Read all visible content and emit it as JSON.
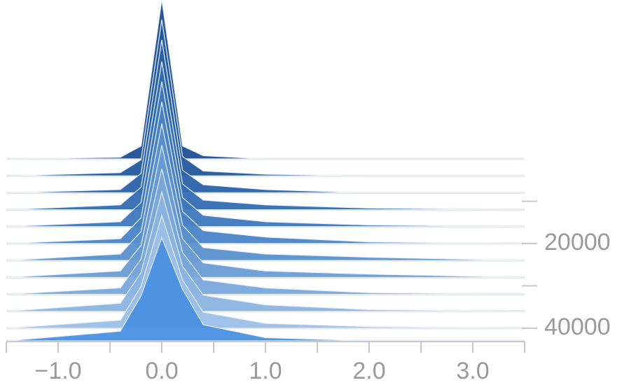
{
  "chart_data": {
    "type": "ridgeline",
    "x": [
      -1.5,
      -0.4,
      -0.2,
      0,
      0.2,
      0.4,
      1.0,
      2.0,
      3.5
    ],
    "series": [
      {
        "step": 0,
        "color": "#1c4f93",
        "values": [
          0,
          1,
          8,
          99,
          8,
          2,
          0,
          0,
          0
        ]
      },
      {
        "step": 4000,
        "color": "#22589d",
        "values": [
          0,
          2,
          10,
          97,
          12,
          3,
          1,
          0,
          0
        ]
      },
      {
        "step": 8000,
        "color": "#2a62a8",
        "values": [
          0,
          2,
          12,
          95,
          14,
          5,
          2,
          0,
          0
        ]
      },
      {
        "step": 12000,
        "color": "#336db3",
        "values": [
          0,
          3,
          14,
          92,
          16,
          6,
          3,
          1,
          0
        ]
      },
      {
        "step": 16000,
        "color": "#3d78bd",
        "values": [
          0,
          3,
          15,
          90,
          18,
          7,
          3,
          1,
          0
        ]
      },
      {
        "step": 20000,
        "color": "#4a84c6",
        "values": [
          0,
          3,
          16,
          88,
          20,
          8,
          4,
          1,
          0
        ]
      },
      {
        "step": 24000,
        "color": "#5990ce",
        "values": [
          0,
          4,
          18,
          85,
          22,
          8,
          4,
          2,
          0
        ]
      },
      {
        "step": 28000,
        "color": "#689cd5",
        "values": [
          0,
          4,
          20,
          82,
          24,
          9,
          4,
          2,
          0
        ]
      },
      {
        "step": 32000,
        "color": "#79a8dc",
        "values": [
          0,
          4,
          22,
          78,
          26,
          9,
          4,
          1,
          0
        ]
      },
      {
        "step": 36000,
        "color": "#8ab4e2",
        "values": [
          0,
          5,
          24,
          74,
          28,
          10,
          4,
          1,
          0
        ]
      },
      {
        "step": 40000,
        "color": "#9cc0e8",
        "values": [
          0,
          5,
          26,
          70,
          30,
          10,
          3,
          1,
          0
        ]
      },
      {
        "step": 43000,
        "color": "#4a90e2",
        "values": [
          0,
          6,
          28,
          64,
          32,
          10,
          2,
          0,
          0
        ]
      }
    ],
    "xlim": [
      -1.5,
      3.5
    ],
    "xticks": [
      {
        "value": -1,
        "label": "−1.0"
      },
      {
        "value": 0,
        "label": "0.0"
      },
      {
        "value": 1,
        "label": "1.0"
      },
      {
        "value": 2,
        "label": "2.0"
      },
      {
        "value": 3,
        "label": "3.0"
      }
    ],
    "minor_xticks": [
      -1.5,
      -0.5,
      0.5,
      1.5,
      2.5,
      3.5
    ],
    "ylim": [
      0,
      43000
    ],
    "yticks": [
      20000,
      40000
    ],
    "minor_yticks": [
      10000,
      30000
    ],
    "zlim": [
      0,
      100
    ]
  }
}
